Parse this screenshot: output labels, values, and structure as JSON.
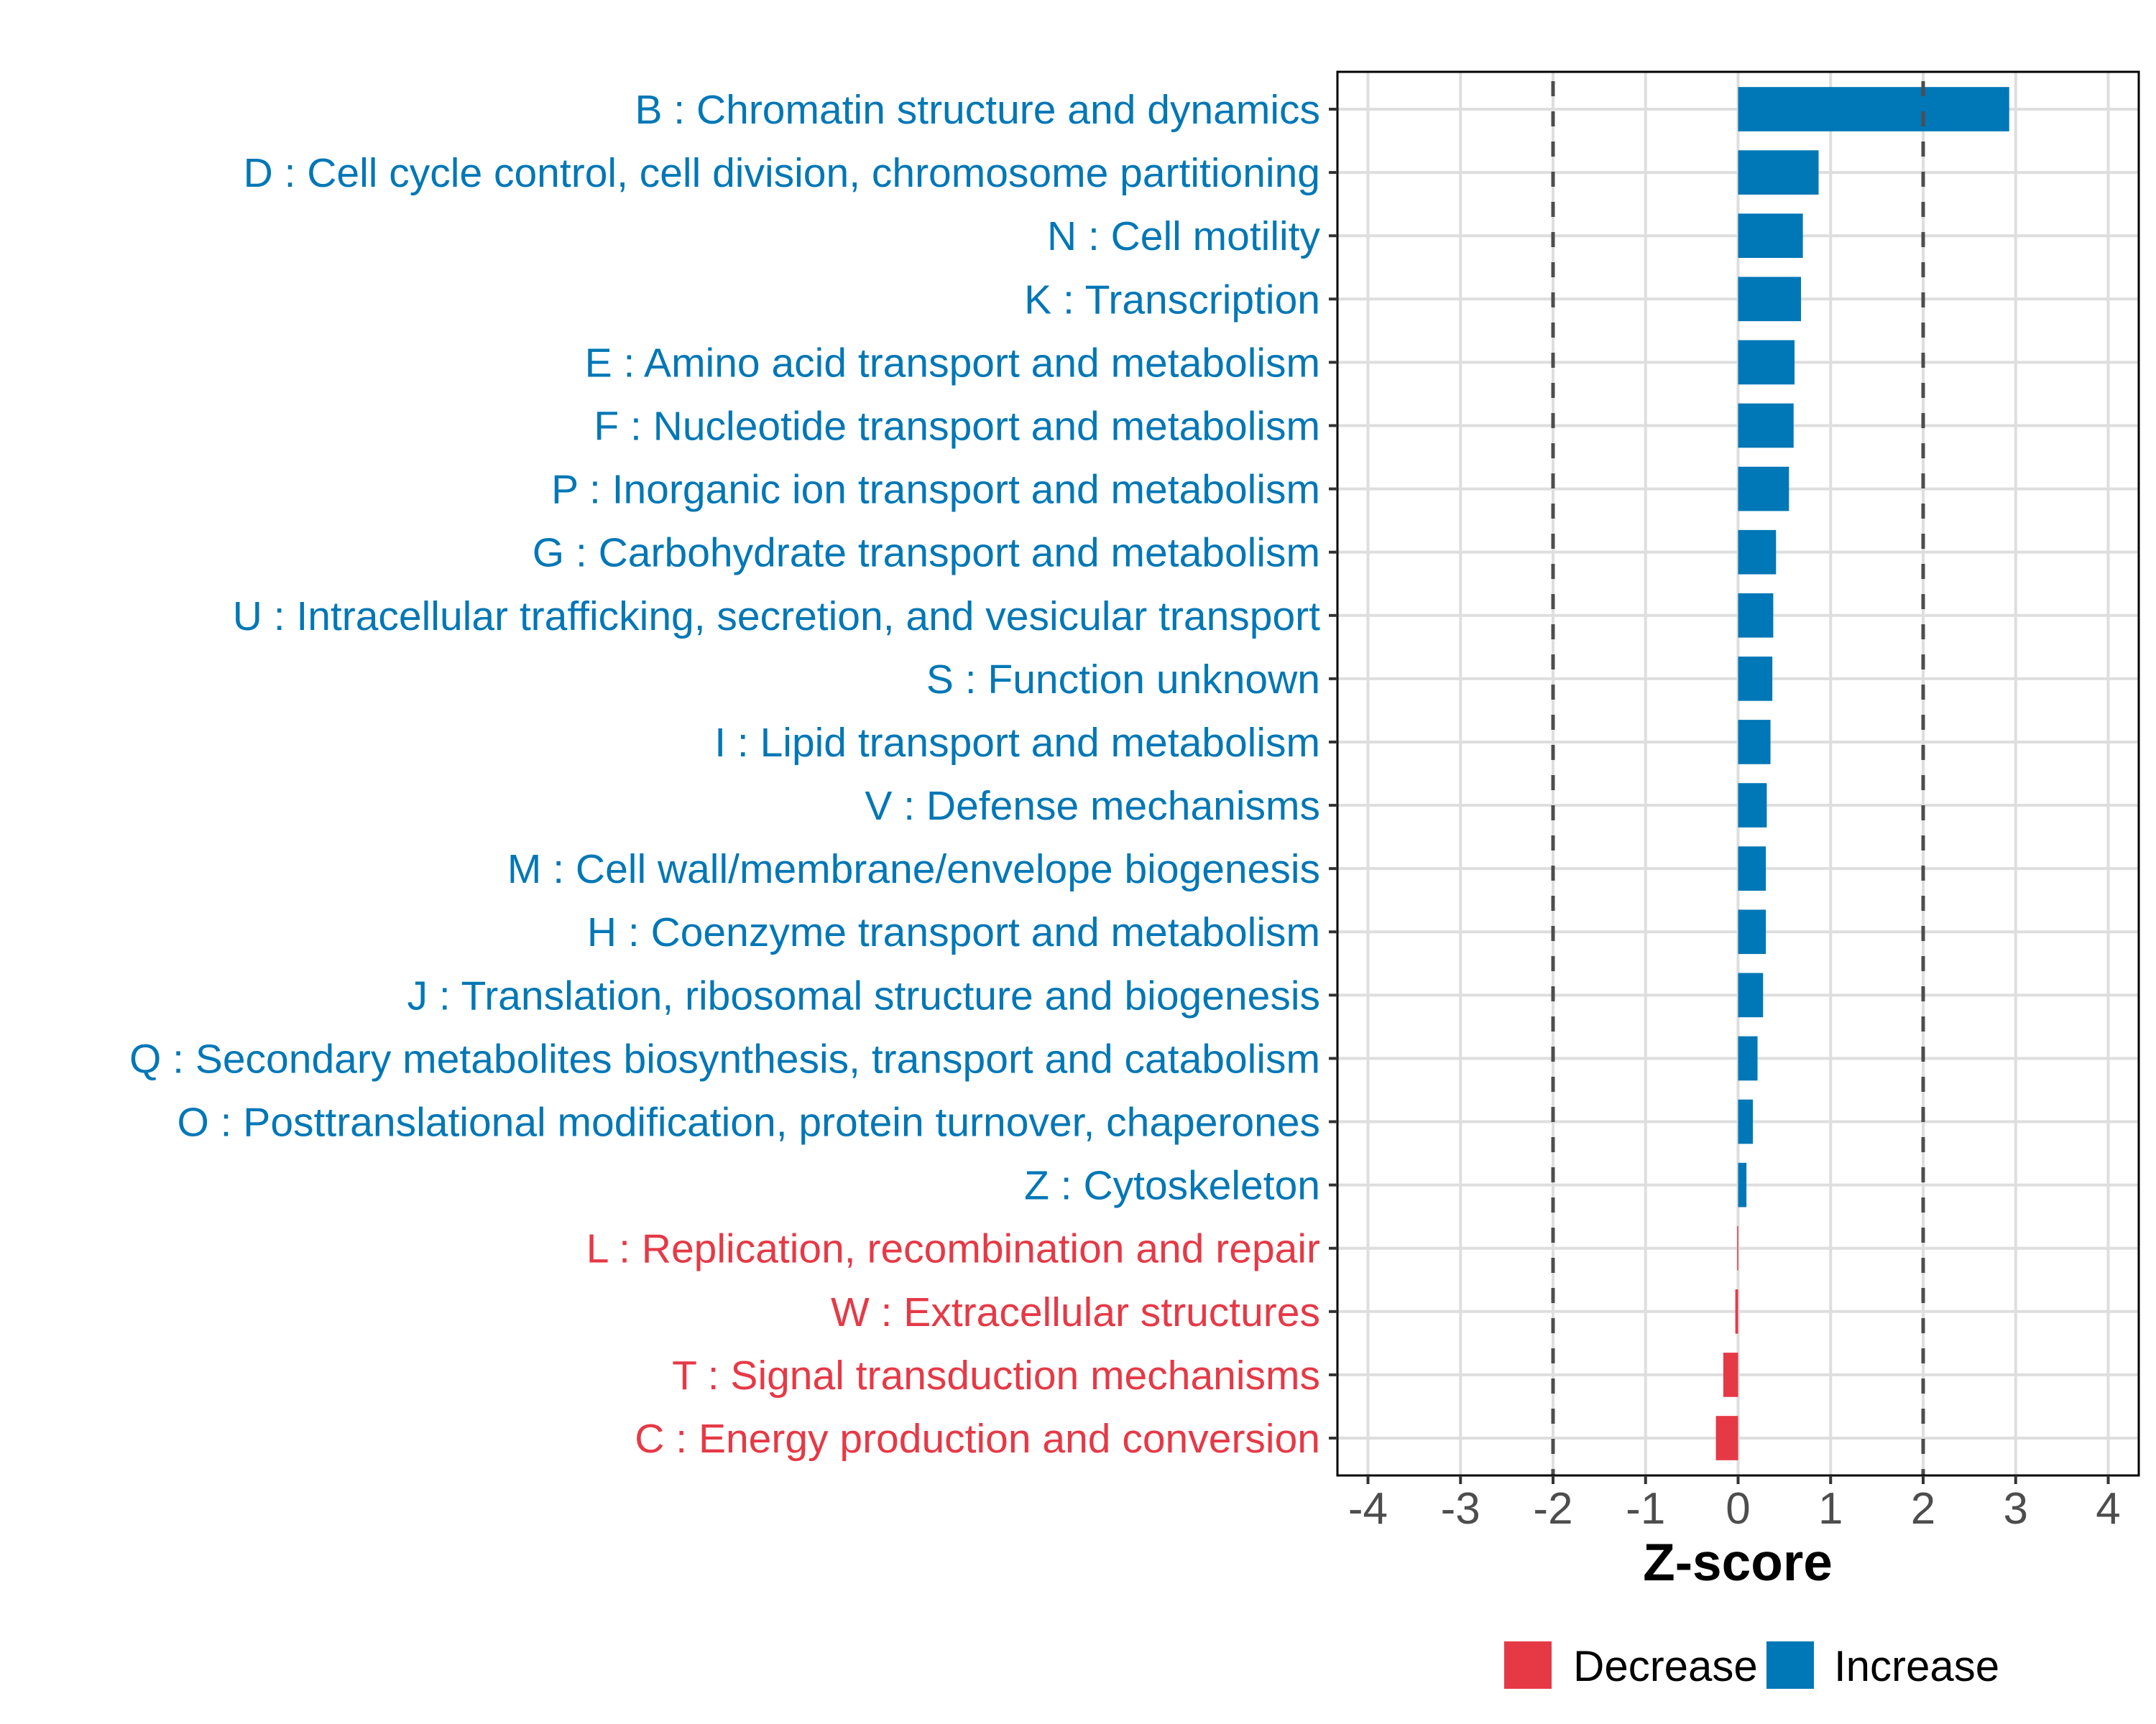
{
  "chart_data": {
    "type": "bar",
    "orientation": "horizontal",
    "title": "",
    "xlabel": "Z-score",
    "ylabel": "",
    "xlim": [
      -4.33,
      4.33
    ],
    "xticks": [
      -4,
      -3,
      -2,
      -1,
      0,
      1,
      2,
      3,
      4
    ],
    "xtick_labels": [
      "-4",
      "-3",
      "-2",
      "-1",
      "0",
      "1",
      "2",
      "3",
      "4"
    ],
    "reference_lines": [
      -2,
      2
    ],
    "grid": true,
    "legend_position": "bottom",
    "legend": [
      {
        "name": "Decrease",
        "color": "#E63946"
      },
      {
        "name": "Increase",
        "color": "#0077B6"
      }
    ],
    "categories": [
      "B : Chromatin structure and dynamics",
      "D : Cell cycle control, cell division, chromosome partitioning",
      "N : Cell motility",
      "K : Transcription",
      "E : Amino acid transport and metabolism",
      "F : Nucleotide transport and metabolism",
      "P : Inorganic ion transport and metabolism",
      "G : Carbohydrate transport and metabolism",
      "U : Intracellular trafficking, secretion, and vesicular transport",
      "S : Function unknown",
      "I : Lipid transport and metabolism",
      "V : Defense mechanisms",
      "M : Cell wall/membrane/envelope biogenesis",
      "H : Coenzyme transport and metabolism",
      "J : Translation, ribosomal structure and biogenesis",
      "Q : Secondary metabolites biosynthesis, transport and catabolism",
      "O : Posttranslational modification, protein turnover, chaperones",
      "Z : Cytoskeleton",
      "L : Replication, recombination and repair",
      "W : Extracellular structures",
      "T : Signal transduction mechanisms",
      "C : Energy production and conversion"
    ],
    "values": [
      2.93,
      0.87,
      0.7,
      0.68,
      0.61,
      0.6,
      0.55,
      0.41,
      0.38,
      0.37,
      0.35,
      0.31,
      0.3,
      0.3,
      0.27,
      0.21,
      0.16,
      0.09,
      -0.01,
      -0.03,
      -0.16,
      -0.24
    ],
    "groups": [
      "Increase",
      "Increase",
      "Increase",
      "Increase",
      "Increase",
      "Increase",
      "Increase",
      "Increase",
      "Increase",
      "Increase",
      "Increase",
      "Increase",
      "Increase",
      "Increase",
      "Increase",
      "Increase",
      "Increase",
      "Increase",
      "Decrease",
      "Decrease",
      "Decrease",
      "Decrease"
    ]
  }
}
